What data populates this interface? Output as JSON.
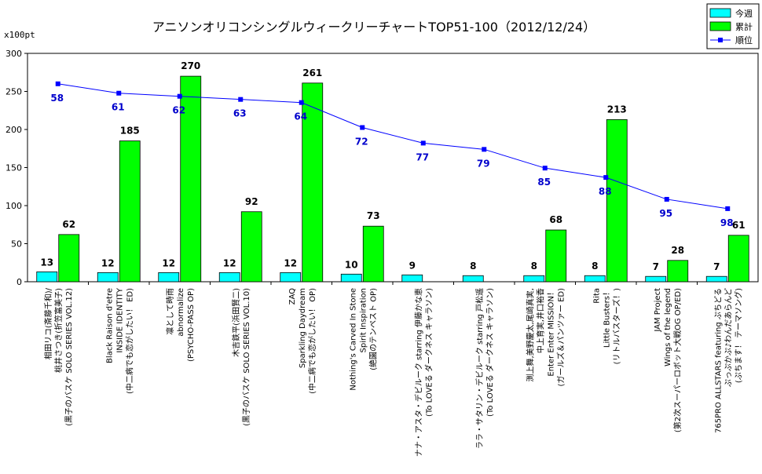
{
  "chart_data": {
    "type": "bar",
    "title": "アニソンオリコンシングルウィークリーチャートTOP51-100（2012/12/24）",
    "unit_label": "x100pt",
    "ylim": [
      0,
      300
    ],
    "yticks": [
      "0",
      "50",
      "100",
      "150",
      "200",
      "250",
      "300"
    ],
    "grid": false,
    "legend_position": "top-right",
    "colors": {
      "weekly": "#00ffff",
      "total": "#00ff00",
      "rank": "#0000ff"
    },
    "categories": [
      [
        "相田リコ(斎藤千和)/",
        "桃井さつき(折笠富美子)",
        "(黒子のバスケ SOLO SERIES VOL.12)"
      ],
      [
        "Black Raison d'etre",
        "INSIDE IDENTITY",
        "(中二病でも恋がしたい！ ED)"
      ],
      [
        "凛として時雨",
        "abnormalize",
        "(PSYCHO-PASS OP)"
      ],
      [
        "木吉鉄平(浜田賢二)",
        "(黒子のバスケ SOLO SERIES VOL.10)"
      ],
      [
        "ZAQ",
        "Sparkling Daydream",
        "(中二病でも恋がしたい！ OP)"
      ],
      [
        "Nothing's Carved In Stone",
        "Spirit Inspiration",
        "(絶園のテンペスト OP)"
      ],
      [
        "ナナ・アスタ・デビルーク starring 伊藤かな恵",
        "(To LOVEる ダークネス キャラソン)"
      ],
      [
        "ララ・サタリン・デビルーク starring 戸松遥",
        "(To LOVEる ダークネス キャラソン)"
      ],
      [
        "渕上舞,美野慶太,尾崎真実,",
        "中上育実,井口裕香",
        "Enter Enter MISSION！",
        "(ガールズ＆パンツァー ED)"
      ],
      [
        "Rita",
        "Little Busters！",
        "(リトルバスターズ！)"
      ],
      [
        "JAM Project",
        "Wings of the legend",
        "(第2次スーパーロボット大戦OG OP/ED)"
      ],
      [
        "765PRO ALLSTARS featuring ぷちどる",
        "ぷっぷかぷ♪わんだあらんど",
        "(ぷちます！ テーマソング)"
      ]
    ],
    "series": [
      {
        "name": "今週",
        "type": "bar",
        "values": [
          13,
          12,
          12,
          12,
          12,
          10,
          9,
          8,
          8,
          8,
          7,
          7
        ]
      },
      {
        "name": "累計",
        "type": "bar",
        "values": [
          62,
          185,
          270,
          92,
          261,
          73,
          null,
          null,
          68,
          213,
          28,
          61
        ]
      },
      {
        "name": "順位",
        "type": "line",
        "values": [
          58,
          61,
          62,
          63,
          64,
          72,
          77,
          79,
          85,
          88,
          95,
          98
        ]
      }
    ]
  }
}
